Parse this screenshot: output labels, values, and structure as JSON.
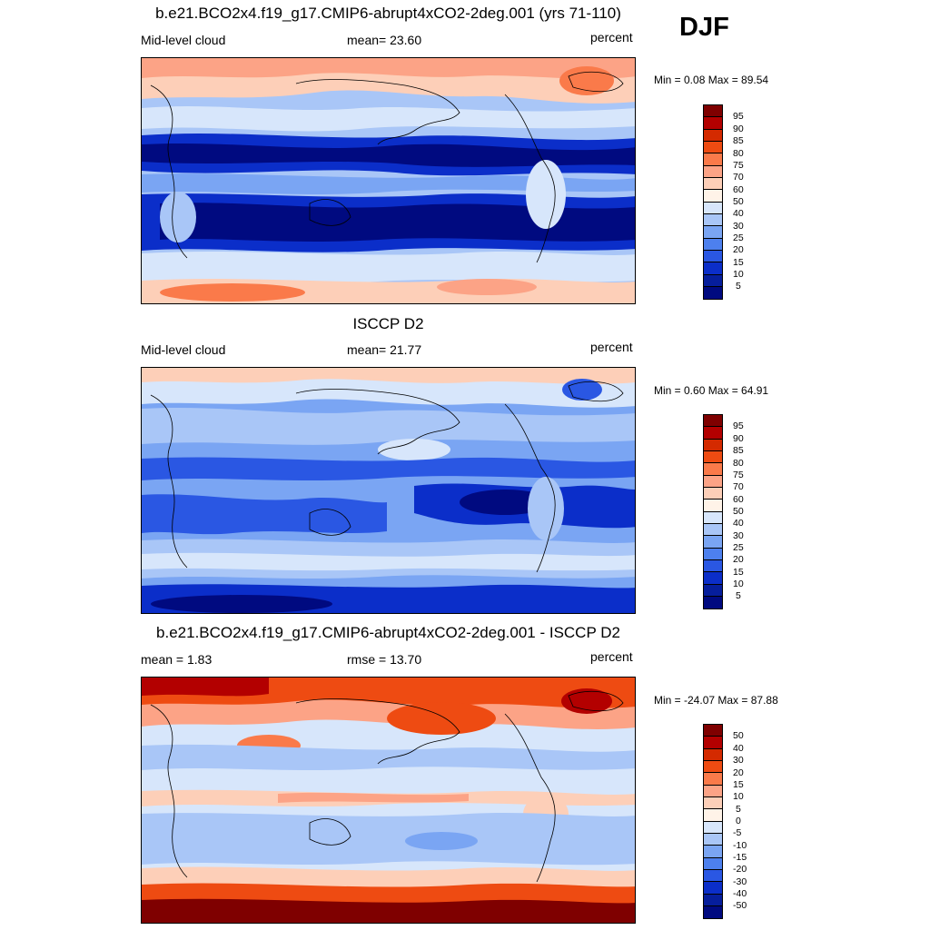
{
  "season": "DJF",
  "chart_data": [
    {
      "type": "heatmap",
      "title": "b.e21.BCO2x4.f19_g17.CMIP6-abrupt4xCO2-2deg.001 (yrs 71-110)",
      "left_label": "Mid-level cloud",
      "center_label": "mean=  23.60",
      "right_label": "percent",
      "mean": 23.6,
      "units": "percent",
      "min": 0.08,
      "max": 89.54,
      "minmax_label": "Min =   0.08 Max =  89.54",
      "levels": [
        "95",
        "90",
        "85",
        "80",
        "75",
        "70",
        "60",
        "50",
        "40",
        "30",
        "25",
        "20",
        "15",
        "10",
        "5"
      ],
      "colors": [
        "#7f0000",
        "#b30000",
        "#d42a00",
        "#ee4b12",
        "#fa7a4a",
        "#fca386",
        "#fdcfb8",
        "#fff3e8",
        "#d7e6fb",
        "#a9c6f7",
        "#7aa5f3",
        "#4d80ee",
        "#2a57e3",
        "#0b2ec9",
        "#061e9c",
        "#000a80"
      ]
    },
    {
      "type": "heatmap",
      "title": "ISCCP D2",
      "left_label": "Mid-level cloud",
      "center_label": "mean=  21.77",
      "right_label": "percent",
      "mean": 21.77,
      "units": "percent",
      "min": 0.6,
      "max": 64.91,
      "minmax_label": "Min =   0.60 Max =  64.91",
      "levels": [
        "95",
        "90",
        "85",
        "80",
        "75",
        "70",
        "60",
        "50",
        "40",
        "30",
        "25",
        "20",
        "15",
        "10",
        "5"
      ],
      "colors": [
        "#7f0000",
        "#b30000",
        "#d42a00",
        "#ee4b12",
        "#fa7a4a",
        "#fca386",
        "#fdcfb8",
        "#fff3e8",
        "#d7e6fb",
        "#a9c6f7",
        "#7aa5f3",
        "#4d80ee",
        "#2a57e3",
        "#0b2ec9",
        "#061e9c",
        "#000a80"
      ]
    },
    {
      "type": "heatmap",
      "title": "b.e21.BCO2x4.f19_g17.CMIP6-abrupt4xCO2-2deg.001 - ISCCP D2",
      "left_label": "mean =   1.83",
      "center_label": "rmse =  13.70",
      "right_label": "percent",
      "mean": 1.83,
      "rmse": 13.7,
      "units": "percent",
      "min": -24.07,
      "max": 87.88,
      "minmax_label": "Min = -24.07 Max =  87.88",
      "levels": [
        "50",
        "40",
        "30",
        "20",
        "15",
        "10",
        "5",
        "0",
        "-5",
        "-10",
        "-15",
        "-20",
        "-30",
        "-40",
        "-50"
      ],
      "colors": [
        "#7f0000",
        "#b30000",
        "#d42a00",
        "#ee4b12",
        "#fa7a4a",
        "#fca386",
        "#fdcfb8",
        "#fff3e8",
        "#d7e6fb",
        "#a9c6f7",
        "#7aa5f3",
        "#4d80ee",
        "#2a57e3",
        "#0b2ec9",
        "#061e9c",
        "#000a80"
      ]
    }
  ]
}
